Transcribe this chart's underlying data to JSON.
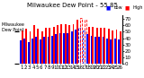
{
  "title": "Milwaukee Dew Point - 55.85",
  "ylim": [
    0,
    75
  ],
  "yticks": [
    0,
    10,
    20,
    30,
    40,
    50,
    60,
    70
  ],
  "ytick_labels": [
    "0",
    "10",
    "20",
    "30",
    "40",
    "50",
    "60",
    "70"
  ],
  "background_color": "#ffffff",
  "days": [
    1,
    2,
    3,
    4,
    5,
    6,
    7,
    8,
    9,
    10,
    11,
    12,
    13,
    14,
    15,
    16,
    17,
    18,
    19,
    20,
    21,
    22,
    23,
    24,
    25,
    26
  ],
  "high_values": [
    52,
    55,
    50,
    60,
    55,
    50,
    56,
    56,
    58,
    60,
    62,
    62,
    60,
    62,
    68,
    72,
    68,
    58,
    58,
    56,
    56,
    56,
    55,
    52,
    54,
    50
  ],
  "low_values": [
    36,
    40,
    34,
    40,
    42,
    38,
    42,
    42,
    44,
    46,
    48,
    48,
    48,
    50,
    54,
    56,
    52,
    46,
    44,
    42,
    42,
    42,
    40,
    38,
    40,
    38
  ],
  "bar_color_high": "#ff0000",
  "bar_color_low": "#0000ff",
  "dashed_indices": [
    15,
    16
  ],
  "title_fontsize": 5,
  "axis_fontsize": 4,
  "left_label": "Milwaukee\nDew Point",
  "legend_high": "High",
  "legend_low": "Low"
}
